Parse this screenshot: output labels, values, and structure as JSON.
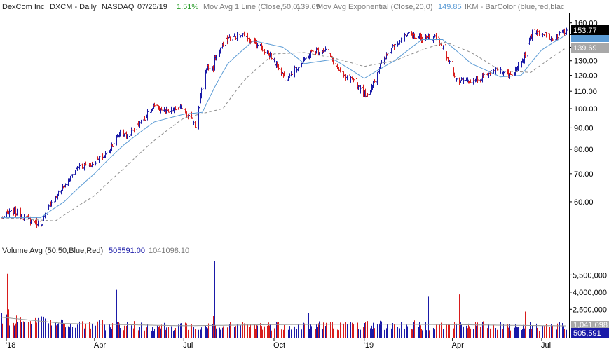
{
  "header": {
    "symbol_name": "DexCom Inc",
    "ticker": "DXCM - Daily",
    "exchange": "NASDAQ",
    "date": "07/26/19",
    "change": "1.51%",
    "ma1_label": "Mov Avg 1 Line (Close,50,0)",
    "ma1_value": "139.69",
    "ema_label": "Mov Avg Exponential (Close,20,0)",
    "ema_value": "149.85",
    "barcolor_label": "!KM - BarColor (blue,red,blac"
  },
  "volume_header": {
    "label": "Volume Avg (50,50,Blue,Red)",
    "value1": "505591.00",
    "value2": "1041098.10"
  },
  "badges": {
    "last_price": "153.77",
    "ma_price": "139.69",
    "volume_last": "505,591",
    "volume_avg": "1,041,098"
  },
  "colors": {
    "up": "#1a1aa8",
    "down": "#d81c1c",
    "ema": "#5b9bd5",
    "sma": "#8c8c8c",
    "vol_avg": "#999999",
    "header_text": "#222222",
    "header_muted": "#7a7a7a",
    "header_green": "#2a9d2a",
    "header_blue": "#5b9bd5",
    "vol_value_blue": "#1a1aa8",
    "axis": "#000000",
    "badge_dark": "#000000",
    "badge_gray": "#a8a8a8"
  },
  "chart_data": {
    "type": "candlestick",
    "price_axis": {
      "scale": "log",
      "ylim": [
        48,
        168
      ],
      "ticks": [
        60,
        70,
        80,
        90,
        100,
        110,
        120,
        130,
        140,
        150,
        160
      ],
      "tick_labels": [
        "60.00",
        "70.00",
        "80.00",
        "90.00",
        "100.00",
        "110.00",
        "120.00",
        "130.00",
        "140.00",
        "150.00",
        "160.00"
      ]
    },
    "volume_axis": {
      "ylim": [
        0,
        7000000
      ],
      "ticks": [
        2500000,
        4000000,
        5500000
      ],
      "tick_labels": [
        "2,500,000",
        "4,000,000",
        "5,500,000"
      ]
    },
    "x_axis": {
      "range": [
        "2017-12-27",
        "2019-07-26"
      ],
      "ticks": [
        "2018-01-01",
        "2018-04-01",
        "2018-07-01",
        "2018-10-01",
        "2019-01-01",
        "2019-04-01",
        "2019-07-01"
      ],
      "tick_labels": [
        "'18",
        "Apr",
        "Jul",
        "Oct",
        "'19",
        "Apr",
        "Jul"
      ]
    },
    "close_anchors": {
      "dates": [
        "2017-12-27",
        "2018-01-08",
        "2018-01-19",
        "2018-02-05",
        "2018-02-16",
        "2018-03-02",
        "2018-03-16",
        "2018-03-29",
        "2018-04-13",
        "2018-04-27",
        "2018-05-04",
        "2018-05-18",
        "2018-06-01",
        "2018-06-15",
        "2018-06-29",
        "2018-07-13",
        "2018-07-24",
        "2018-07-31",
        "2018-08-01",
        "2018-08-15",
        "2018-08-31",
        "2018-09-14",
        "2018-09-28",
        "2018-10-12",
        "2018-10-26",
        "2018-11-09",
        "2018-11-23",
        "2018-12-07",
        "2018-12-21",
        "2019-01-04",
        "2019-01-18",
        "2019-02-01",
        "2019-02-15",
        "2019-03-01",
        "2019-03-15",
        "2019-03-22",
        "2019-04-05",
        "2019-04-19",
        "2019-05-03",
        "2019-05-17",
        "2019-05-31",
        "2019-06-14",
        "2019-06-21",
        "2019-06-28",
        "2019-07-12",
        "2019-07-26"
      ],
      "close": [
        55,
        57,
        55,
        53,
        60,
        66,
        73,
        74,
        78,
        88,
        86,
        93,
        101,
        98,
        101,
        91,
        125,
        125,
        132,
        147,
        150,
        142,
        133,
        118,
        126,
        137,
        138,
        121,
        116,
        107,
        128,
        143,
        150,
        147,
        148,
        140,
        117,
        115,
        119,
        124,
        120,
        134,
        152,
        152,
        147,
        153.77
      ]
    },
    "ema20": {
      "dates": [
        "2017-12-27",
        "2018-02-05",
        "2018-03-01",
        "2018-04-01",
        "2018-05-01",
        "2018-06-01",
        "2018-07-01",
        "2018-07-20",
        "2018-08-15",
        "2018-09-10",
        "2018-10-10",
        "2018-11-01",
        "2018-12-01",
        "2019-01-01",
        "2019-02-01",
        "2019-03-01",
        "2019-03-22",
        "2019-04-20",
        "2019-05-20",
        "2019-06-10",
        "2019-07-01",
        "2019-07-26"
      ],
      "values": [
        55,
        55,
        60,
        70,
        82,
        93,
        97,
        98,
        128,
        145,
        140,
        128,
        131,
        118,
        130,
        146,
        146,
        128,
        119,
        120,
        138,
        149.85
      ]
    },
    "sma50": {
      "dates": [
        "2017-12-27",
        "2018-02-20",
        "2018-04-01",
        "2018-05-01",
        "2018-06-01",
        "2018-07-01",
        "2018-08-10",
        "2018-09-01",
        "2018-10-01",
        "2018-11-01",
        "2018-12-01",
        "2019-01-01",
        "2019-02-01",
        "2019-03-01",
        "2019-03-25",
        "2019-04-20",
        "2019-05-20",
        "2019-06-20",
        "2019-07-26"
      ],
      "values": [
        55,
        54,
        62,
        72,
        84,
        95,
        100,
        117,
        135,
        136,
        132,
        126,
        130,
        138,
        144,
        136,
        123,
        122,
        139.69
      ]
    },
    "volume_spikes": [
      {
        "date": "2018-01-02",
        "value": 5600000
      },
      {
        "date": "2018-01-03",
        "value": 2500000
      },
      {
        "date": "2018-04-23",
        "value": 4200000
      },
      {
        "date": "2018-08-01",
        "value": 6700000
      },
      {
        "date": "2018-07-31",
        "value": 1900000
      },
      {
        "date": "2018-11-05",
        "value": 2200000
      },
      {
        "date": "2018-12-10",
        "value": 5600000
      },
      {
        "date": "2018-12-03",
        "value": 3400000
      },
      {
        "date": "2019-03-07",
        "value": 3600000
      },
      {
        "date": "2019-04-08",
        "value": 3800000
      },
      {
        "date": "2019-06-17",
        "value": 4000000
      },
      {
        "date": "2019-06-14",
        "value": 2300000
      }
    ],
    "volume_avg": {
      "dates": [
        "2017-12-27",
        "2018-03-01",
        "2018-07-01",
        "2018-10-01",
        "2019-01-01",
        "2019-04-01",
        "2019-07-26"
      ],
      "values": [
        1800000,
        1250000,
        1050000,
        1150000,
        1200000,
        1150000,
        1041098
      ]
    }
  }
}
